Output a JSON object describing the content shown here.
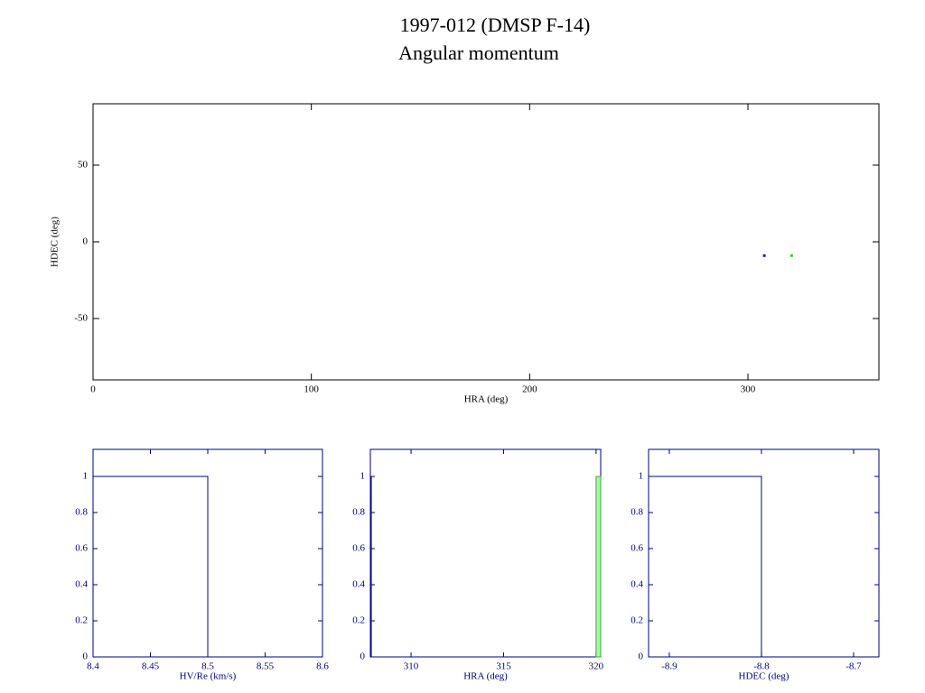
{
  "chart_data": [
    {
      "type": "scatter",
      "title": "1997-012 (DMSP F-14)",
      "subtitle": "Angular momentum",
      "xlabel": "HRA (deg)",
      "ylabel": "HDEC (deg)",
      "axis_color": "#000000",
      "xlim": [
        0,
        360
      ],
      "ylim": [
        -90,
        90
      ],
      "xticks": [
        0,
        100,
        200,
        300
      ],
      "yticks": [
        -50,
        0,
        50
      ],
      "series": [
        {
          "color": "#2020c0",
          "x": [
            307.5
          ],
          "y": [
            -9
          ]
        },
        {
          "color": "#30d030",
          "x": [
            320
          ],
          "y": [
            -9
          ]
        }
      ]
    },
    {
      "type": "histogram",
      "xlabel": "HV/Re (km/s)",
      "axis_color": "#000080",
      "xlim": [
        8.4,
        8.6
      ],
      "ylim": [
        0,
        1.15
      ],
      "xticks": [
        8.4,
        8.45,
        8.5,
        8.55,
        8.6
      ],
      "yticks": [
        0,
        0.2,
        0.4,
        0.6,
        0.8,
        1
      ],
      "series": [
        {
          "color": "#000080",
          "fill": "none",
          "bins": [
            8.4,
            8.5
          ],
          "values": [
            1
          ]
        }
      ]
    },
    {
      "type": "histogram",
      "xlabel": "HRA (deg)",
      "axis_color": "#000080",
      "xlim": [
        307.8,
        320.25
      ],
      "ylim": [
        0,
        1.15
      ],
      "xticks": [
        310,
        315,
        320
      ],
      "yticks": [
        0,
        0.2,
        0.4,
        0.6,
        0.8,
        1
      ],
      "series": [
        {
          "color": "#000080",
          "fill": "none",
          "bins": [
            307.8,
            307.85
          ],
          "values": [
            1
          ]
        },
        {
          "color": "#30b030",
          "fill": "#b0f0b0",
          "bins": [
            320.0,
            320.25
          ],
          "values": [
            1
          ]
        }
      ]
    },
    {
      "type": "histogram",
      "xlabel": "HDEC (deg)",
      "axis_color": "#000080",
      "xlim": [
        -8.9225,
        -8.6725
      ],
      "ylim": [
        0,
        1.15
      ],
      "xticks": [
        -8.9,
        -8.8,
        -8.7
      ],
      "yticks": [
        0,
        0.2,
        0.4,
        0.6,
        0.8,
        1
      ],
      "series": [
        {
          "color": "#000080",
          "fill": "none",
          "bins": [
            -8.9225,
            -8.8
          ],
          "values": [
            1
          ]
        }
      ]
    }
  ]
}
